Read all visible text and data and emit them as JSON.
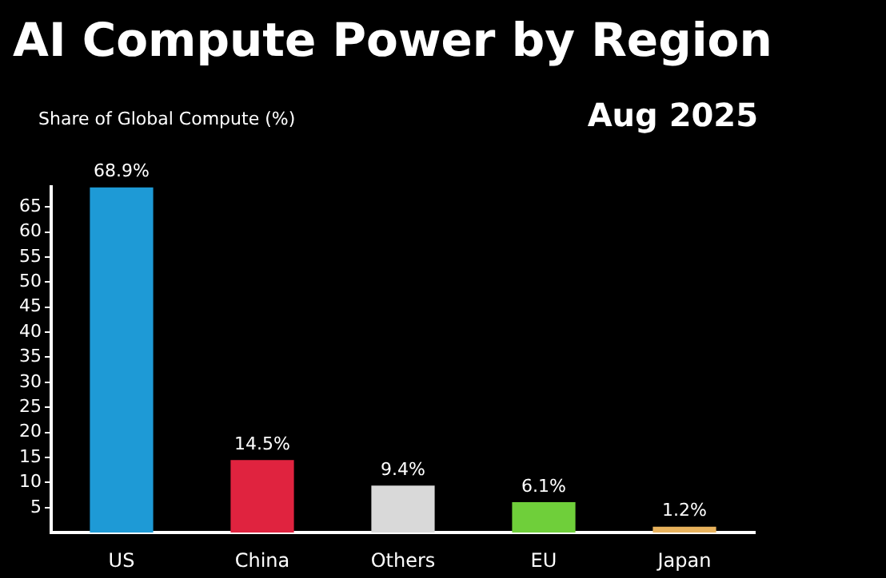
{
  "chart_data": {
    "type": "bar",
    "title": "AI Compute Power by Region",
    "subtitle": "Aug 2025",
    "ylabel": "Share of Global Compute (%)",
    "categories": [
      "US",
      "China",
      "Others",
      "EU",
      "Japan"
    ],
    "values": [
      68.9,
      14.5,
      9.4,
      6.1,
      1.2
    ],
    "colors": [
      "#1e9ad6",
      "#e0233f",
      "#d9d9d9",
      "#6fcf3a",
      "#e8b25c"
    ],
    "value_labels": [
      "68.9%",
      "14.5%",
      "9.4%",
      "6.1%",
      "1.2%"
    ],
    "ylim": [
      0,
      69
    ],
    "yticks": [
      5,
      10,
      15,
      20,
      25,
      30,
      35,
      40,
      45,
      50,
      55,
      60,
      65
    ],
    "grid": false,
    "legend": false
  }
}
